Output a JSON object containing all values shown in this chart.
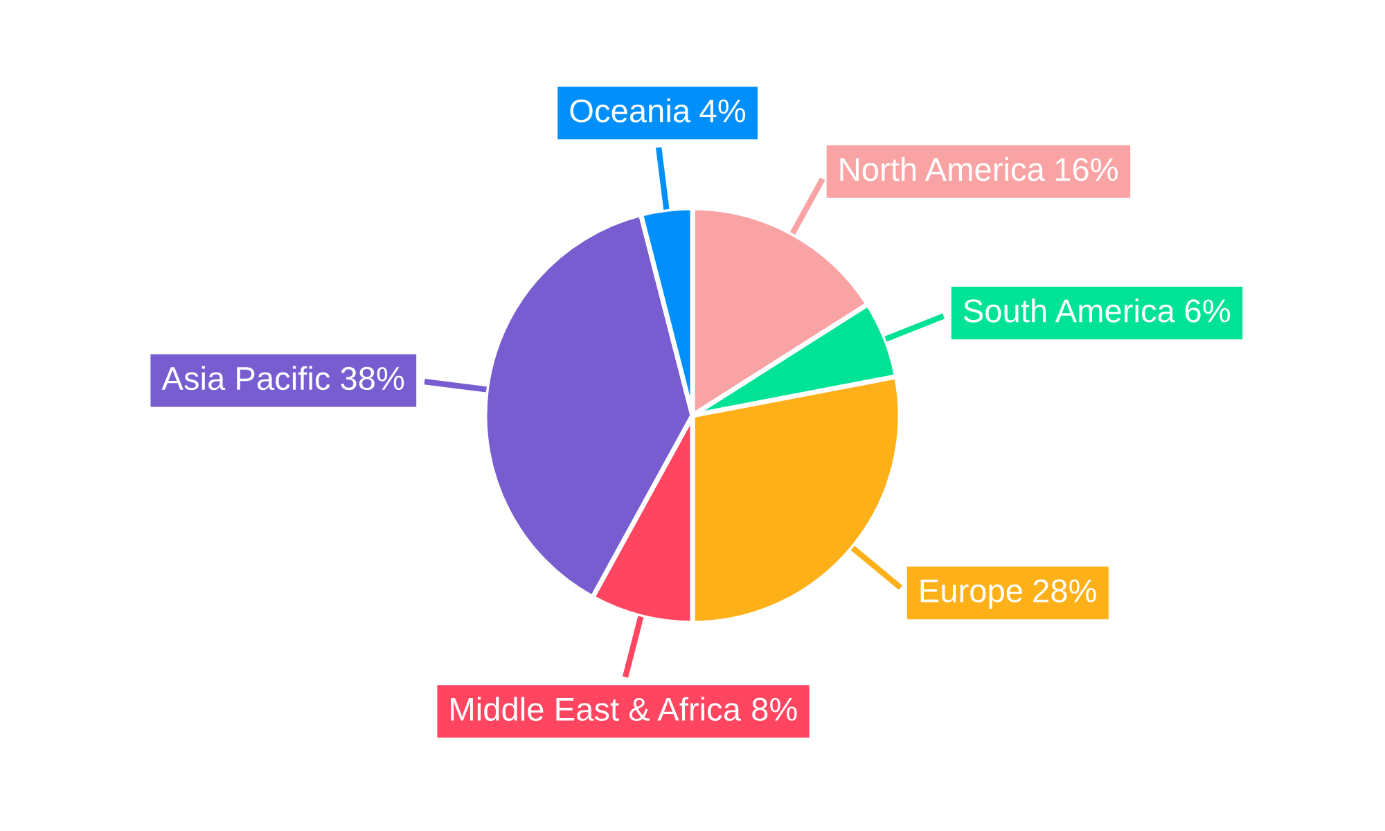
{
  "chart_data": {
    "type": "pie",
    "categories": [
      "North America",
      "South America",
      "Europe",
      "Middle East & Africa",
      "Asia Pacific",
      "Oceania"
    ],
    "values": [
      16,
      6,
      28,
      8,
      38,
      4
    ],
    "value_labels": [
      "16%",
      "6%",
      "28%",
      "8%",
      "38%",
      "4%"
    ],
    "colors": [
      "#f9a3a4",
      "#00e396",
      "#feb019",
      "#ff4560",
      "#775dd0",
      "#008ffb"
    ]
  }
}
